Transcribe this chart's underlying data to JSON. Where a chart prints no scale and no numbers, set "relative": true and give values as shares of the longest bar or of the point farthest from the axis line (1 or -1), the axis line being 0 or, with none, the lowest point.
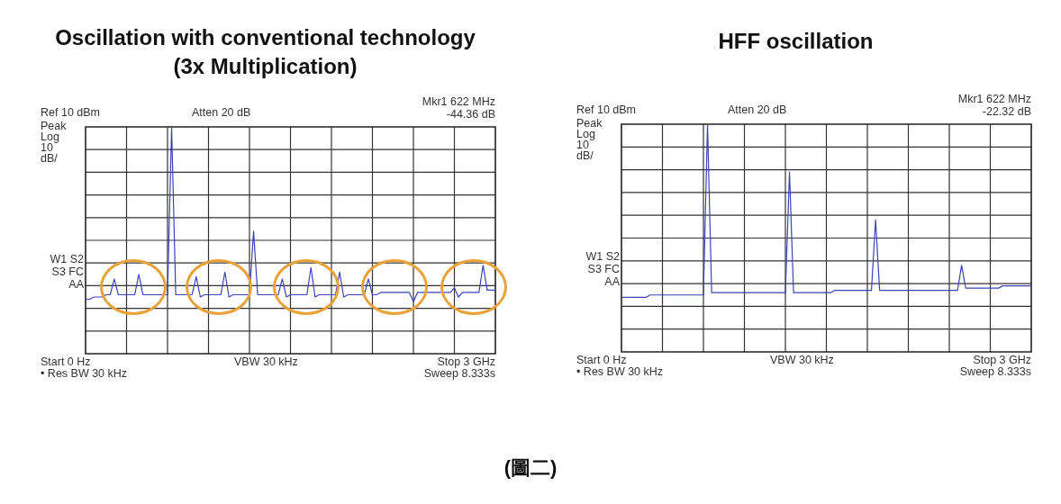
{
  "chart_data": [
    {
      "type": "line",
      "title": "Oscillation with conventional technology",
      "subtitle": "(3x Multiplication)",
      "annotations": [
        "Ref 10 dBm",
        "Atten 20 dB",
        "Mkr1 622 MHz",
        "-44.36 dB",
        "Peak",
        "Log",
        "10",
        "dB/",
        "W1 S2",
        "S3 FC",
        "AA",
        "Start 0 Hz",
        "• Res BW 30 kHz",
        "VBW 30 kHz",
        "Stop 3 GHz",
        "Sweep 8.333s",
        "(圖二)"
      ],
      "relative": true,
      "grid": true,
      "marker": "none",
      "categories": [
        null,
        null,
        null,
        null,
        null,
        null,
        null,
        null,
        null,
        null,
        null,
        null,
        null,
        null,
        null,
        null,
        null,
        null,
        null,
        null,
        null,
        null,
        null,
        null,
        null,
        null,
        null,
        null,
        null,
        null,
        null,
        null,
        null,
        null,
        null,
        null,
        null,
        null,
        null,
        null,
        null,
        null,
        null,
        null,
        null,
        null,
        null,
        null,
        null,
        null,
        null,
        null,
        null,
        null,
        null,
        null,
        null,
        null,
        null,
        null,
        null,
        null,
        null,
        null,
        null,
        null,
        null,
        null,
        null,
        null,
        null,
        null,
        null,
        null,
        null,
        null,
        null,
        null,
        null,
        null,
        null,
        null,
        null,
        null,
        null,
        null,
        null,
        null,
        null,
        null,
        null,
        null,
        null,
        null,
        null,
        null,
        null,
        null,
        null,
        null,
        null
      ],
      "series": [
        {
          "color": "#3a44b8",
          "values": [
            0.24,
            0.24,
            0.25,
            0.25,
            0.25,
            0.26,
            0.26,
            0.33,
            0.26,
            0.26,
            0.26,
            0.26,
            0.26,
            0.35,
            0.26,
            0.26,
            0.26,
            0.26,
            0.26,
            0.26,
            0.26,
            1,
            0.26,
            0.26,
            0.26,
            0.26,
            0.26,
            0.34,
            0.25,
            0.26,
            0.26,
            0.26,
            0.26,
            0.26,
            0.36,
            0.25,
            0.26,
            0.26,
            0.26,
            0.26,
            0.26,
            0.54,
            0.26,
            0.26,
            0.26,
            0.26,
            0.26,
            0.26,
            0.33,
            0.25,
            0.26,
            0.26,
            0.26,
            0.26,
            0.26,
            0.38,
            0.25,
            0.26,
            0.26,
            0.26,
            0.26,
            0.26,
            0.36,
            0.25,
            0.26,
            0.26,
            0.26,
            0.26,
            0.26,
            0.33,
            0.26,
            0.26,
            0.27,
            0.27,
            0.27,
            0.27,
            0.27,
            0.27,
            0.27,
            0.27,
            0.23,
            0.27,
            0.27,
            0.27,
            0.27,
            0.27,
            0.27,
            0.27,
            0.27,
            0.27,
            0.29,
            0.25,
            0.27,
            0.27,
            0.27,
            0.27,
            0.27,
            0.39,
            0.28,
            0.28,
            0.28
          ]
        }
      ]
    },
    {
      "type": "line",
      "title": "HFF oscillation",
      "annotations": [
        "Ref 10 dBm",
        "Atten 20 dB",
        "Mkr1 622 MHz",
        "-22.32 dB",
        "Peak",
        "Log",
        "10",
        "dB/",
        "W1 S2",
        "S3 FC",
        "AA",
        "Start 0 Hz",
        "• Res BW 30 kHz",
        "VBW 30 kHz",
        "Stop 3 GHz",
        "Sweep 8.333s"
      ],
      "relative": true,
      "grid": true,
      "marker": "none",
      "categories": [
        null,
        null,
        null,
        null,
        null,
        null,
        null,
        null,
        null,
        null,
        null,
        null,
        null,
        null,
        null,
        null,
        null,
        null,
        null,
        null,
        null,
        null,
        null,
        null,
        null,
        null,
        null,
        null,
        null,
        null,
        null,
        null,
        null,
        null,
        null,
        null,
        null,
        null,
        null,
        null,
        null,
        null,
        null,
        null,
        null,
        null,
        null,
        null,
        null,
        null,
        null,
        null,
        null,
        null,
        null,
        null,
        null,
        null,
        null,
        null,
        null,
        null,
        null,
        null,
        null,
        null,
        null,
        null,
        null,
        null,
        null,
        null,
        null,
        null,
        null,
        null,
        null,
        null,
        null,
        null,
        null,
        null,
        null,
        null,
        null,
        null,
        null,
        null,
        null,
        null,
        null,
        null,
        null,
        null,
        null,
        null,
        null,
        null,
        null,
        null,
        null
      ],
      "series": [
        {
          "color": "#3a44b8",
          "values": [
            0.24,
            0.24,
            0.24,
            0.24,
            0.24,
            0.24,
            0.24,
            0.25,
            0.25,
            0.25,
            0.25,
            0.25,
            0.25,
            0.25,
            0.25,
            0.25,
            0.25,
            0.25,
            0.25,
            0.25,
            0.25,
            1,
            0.26,
            0.26,
            0.26,
            0.26,
            0.26,
            0.26,
            0.26,
            0.26,
            0.26,
            0.26,
            0.26,
            0.26,
            0.26,
            0.26,
            0.26,
            0.26,
            0.26,
            0.26,
            0.26,
            0.79,
            0.26,
            0.26,
            0.26,
            0.26,
            0.26,
            0.26,
            0.26,
            0.26,
            0.26,
            0.26,
            0.27,
            0.27,
            0.27,
            0.27,
            0.27,
            0.27,
            0.27,
            0.27,
            0.27,
            0.27,
            0.58,
            0.27,
            0.27,
            0.27,
            0.27,
            0.27,
            0.27,
            0.27,
            0.27,
            0.27,
            0.27,
            0.27,
            0.27,
            0.27,
            0.27,
            0.27,
            0.27,
            0.27,
            0.27,
            0.27,
            0.27,
            0.38,
            0.28,
            0.28,
            0.28,
            0.28,
            0.28,
            0.28,
            0.28,
            0.28,
            0.28,
            0.29,
            0.29,
            0.29,
            0.29,
            0.29,
            0.29,
            0.29,
            0.29
          ]
        }
      ]
    }
  ]
}
